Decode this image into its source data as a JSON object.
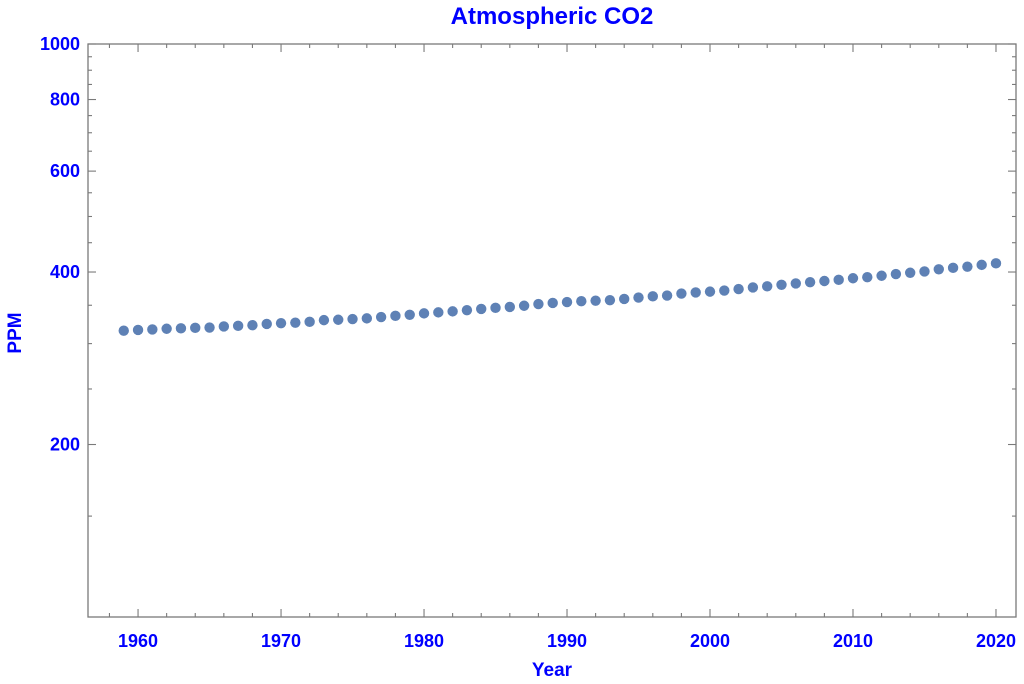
{
  "chart_data": {
    "type": "scatter",
    "title": "Atmospheric CO2",
    "xlabel": "Year",
    "ylabel": "PPM",
    "y_scale": "log",
    "xlim": [
      1956.5,
      2021.4
    ],
    "ylim": [
      100,
      1000
    ],
    "x_ticks": [
      1960,
      1970,
      1980,
      1990,
      2000,
      2010,
      2020
    ],
    "x_tick_labels": [
      "1960",
      "1970",
      "1980",
      "1990",
      "2000",
      "2010",
      "2020"
    ],
    "y_ticks": [
      200,
      400,
      600,
      800,
      1000
    ],
    "y_tick_labels": [
      "200",
      "400",
      "600",
      "800",
      "1000"
    ],
    "y_minor_ticks": [
      150,
      250,
      300,
      350,
      450,
      500,
      550,
      650,
      700,
      750,
      850,
      900,
      950
    ],
    "grid": false,
    "legend": "none",
    "marker_color": "#5e81b5",
    "text_color": "#0000ff",
    "series": [
      {
        "name": "CO2",
        "x": [
          1959,
          1960,
          1961,
          1962,
          1963,
          1964,
          1965,
          1966,
          1967,
          1968,
          1969,
          1970,
          1971,
          1972,
          1973,
          1974,
          1975,
          1976,
          1977,
          1978,
          1979,
          1980,
          1981,
          1982,
          1983,
          1984,
          1985,
          1986,
          1987,
          1988,
          1989,
          1990,
          1991,
          1992,
          1993,
          1994,
          1995,
          1996,
          1997,
          1998,
          1999,
          2000,
          2001,
          2002,
          2003,
          2004,
          2005,
          2006,
          2007,
          2008,
          2009,
          2010,
          2011,
          2012,
          2013,
          2014,
          2015,
          2016,
          2017,
          2018,
          2019,
          2020
        ],
        "values": [
          315.98,
          316.91,
          317.64,
          318.45,
          318.99,
          319.62,
          320.04,
          321.37,
          322.18,
          323.05,
          324.62,
          325.68,
          326.32,
          327.46,
          329.68,
          330.19,
          331.13,
          332.03,
          333.84,
          335.41,
          336.84,
          338.76,
          340.12,
          341.48,
          343.15,
          344.87,
          346.35,
          347.61,
          349.31,
          351.69,
          353.2,
          354.45,
          355.7,
          356.54,
          357.21,
          358.96,
          360.97,
          362.74,
          363.88,
          366.84,
          368.54,
          369.71,
          371.32,
          373.45,
          375.98,
          377.7,
          379.98,
          382.09,
          384.02,
          385.83,
          387.64,
          390.1,
          391.85,
          394.06,
          396.74,
          398.81,
          401.01,
          404.41,
          406.76,
          408.72,
          411.66,
          414.24
        ]
      }
    ]
  }
}
